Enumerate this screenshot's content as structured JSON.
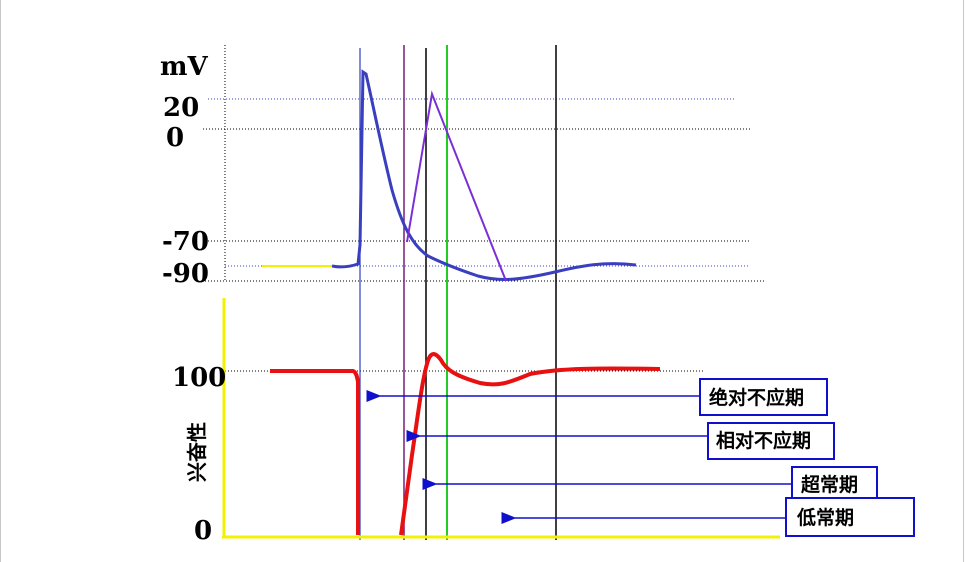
{
  "top_axis": {
    "unit": "mV",
    "ticks": [
      "20",
      "0",
      "-70",
      "-90"
    ]
  },
  "bottom_axis": {
    "label": "兴奋性",
    "ticks": [
      "100",
      "0"
    ]
  },
  "periods": [
    {
      "label": "绝对不应期"
    },
    {
      "label": "相对不应期"
    },
    {
      "label": "超常期"
    },
    {
      "label": "低常期"
    }
  ],
  "colors": {
    "action_potential": "#3a3fbf",
    "second_potential": "#7a2fd6",
    "excitability": "#e81010",
    "axis": "#f2f200",
    "arrow": "#1010cc",
    "marker_blue": "#3040c0",
    "marker_purple": "#7a1f7a",
    "marker_black": "#000000",
    "marker_green": "#22cc22",
    "box_border": "#1010cc"
  }
}
